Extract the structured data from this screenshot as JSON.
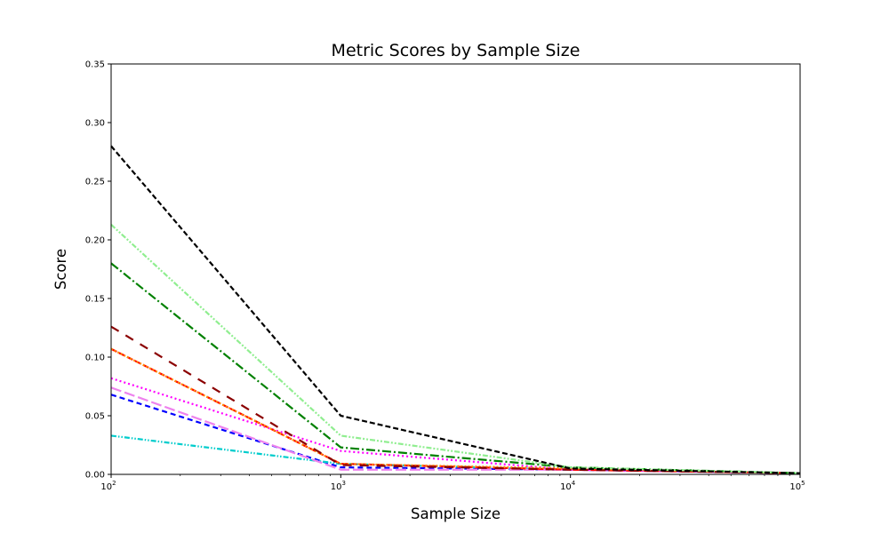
{
  "chart_data": {
    "type": "line",
    "title": "Metric Scores by Sample Size",
    "xlabel": "Sample Size",
    "ylabel": "Score",
    "x_scale": "log",
    "x": [
      100,
      1000,
      10000,
      100000
    ],
    "xlim": [
      100,
      100000
    ],
    "ylim": [
      0,
      0.35
    ],
    "x_ticks": [
      {
        "value": 100,
        "base": "10",
        "exp": "2"
      },
      {
        "value": 1000,
        "base": "10",
        "exp": "3"
      },
      {
        "value": 10000,
        "base": "10",
        "exp": "4"
      },
      {
        "value": 100000,
        "base": "10",
        "exp": "5"
      }
    ],
    "y_ticks": [
      {
        "value": 0,
        "label": "0.00"
      },
      {
        "value": 0.05,
        "label": "0.05"
      },
      {
        "value": 0.1,
        "label": "0.10"
      },
      {
        "value": 0.15,
        "label": "0.15"
      },
      {
        "value": 0.2,
        "label": "0.20"
      },
      {
        "value": 0.25,
        "label": "0.25"
      },
      {
        "value": 0.3,
        "label": "0.30"
      },
      {
        "value": 0.35,
        "label": "0.35"
      }
    ],
    "grid": false,
    "legend": false,
    "series": [
      {
        "values": [
          0.068,
          0.006,
          0.004,
          0.001
        ],
        "color": "#0000ff",
        "dash": "6,4"
      },
      {
        "values": [
          0.033,
          0.009,
          0.004,
          0.001
        ],
        "color": "#00cccc",
        "dash": "6,2,1.5,2,1.5,2"
      },
      {
        "values": [
          0.074,
          0.004,
          0.004,
          0.001
        ],
        "color": "#ee82ee",
        "dash": "12,4"
      },
      {
        "values": [
          0.082,
          0.02,
          0.004,
          0.001
        ],
        "color": "#ff00ff",
        "dash": "2,3"
      },
      {
        "values": [
          0.107,
          0.009,
          0.004,
          0.001
        ],
        "color": "#ff0000",
        "dash": "7,3"
      },
      {
        "values": [
          0.107,
          0.009,
          0.005,
          0.001
        ],
        "color": "#ff8c00",
        "dash": "2,2"
      },
      {
        "values": [
          0.126,
          0.008,
          0.004,
          0.001
        ],
        "color": "#8b0000",
        "dash": "10,9"
      },
      {
        "values": [
          0.18,
          0.023,
          0.006,
          0.001
        ],
        "color": "#008000",
        "dash": "10,3,2,3"
      },
      {
        "values": [
          0.213,
          0.033,
          0.006,
          0.001
        ],
        "color": "#90ee90",
        "dash": "6,2,2,2,2,2"
      },
      {
        "values": [
          0.28,
          0.05,
          0.005,
          0.001
        ],
        "color": "#000000",
        "dash": "6,3"
      }
    ]
  }
}
